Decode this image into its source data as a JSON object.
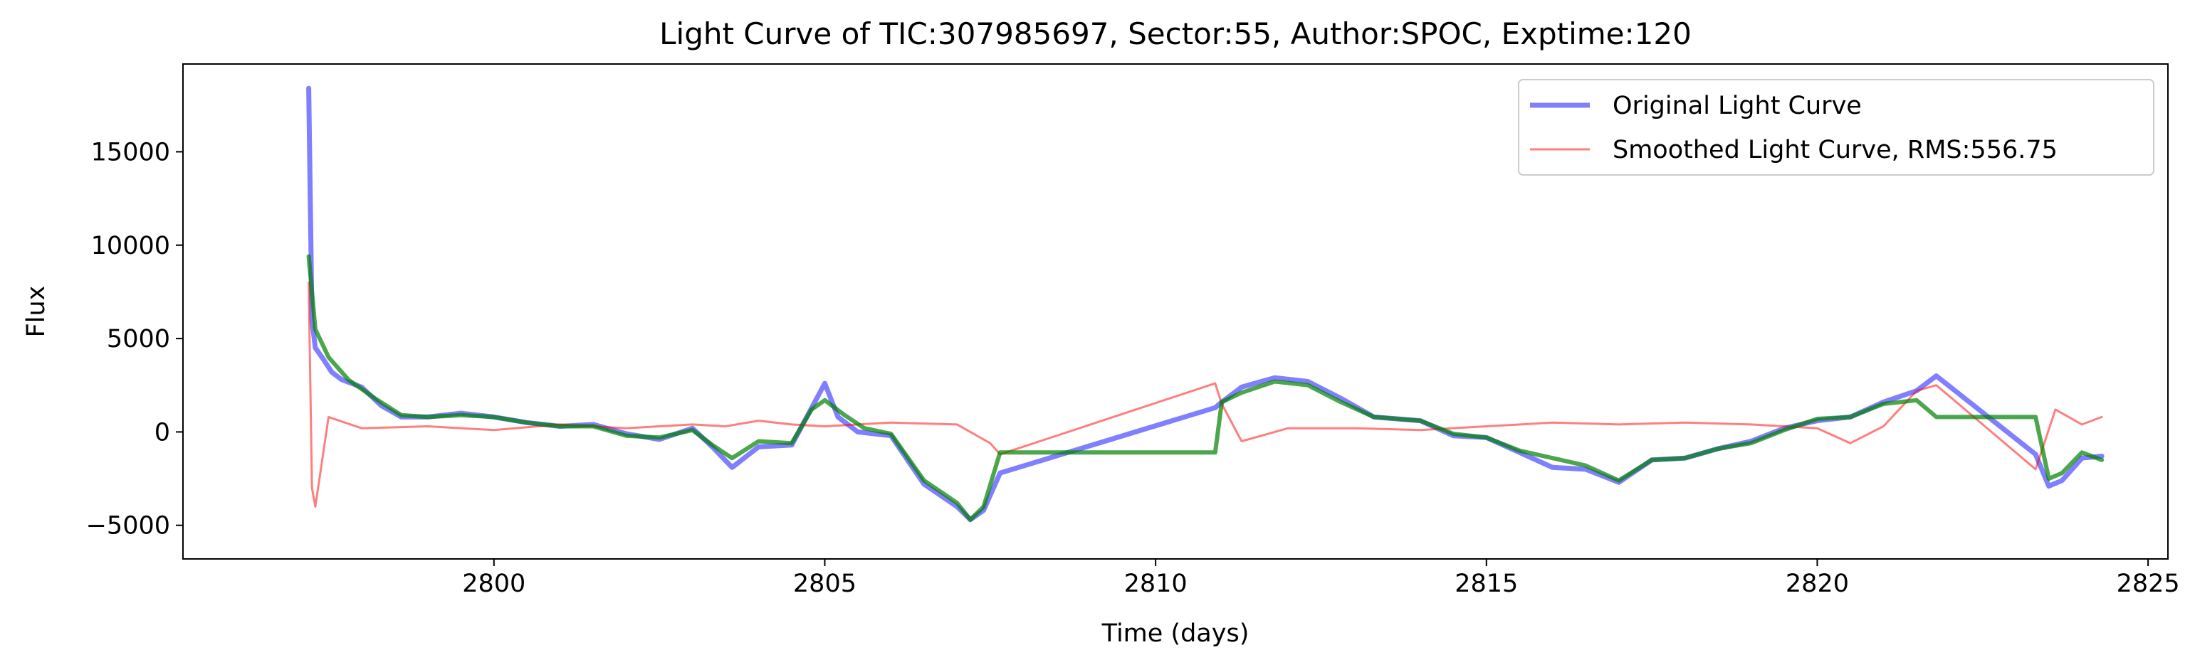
{
  "chart_data": {
    "type": "line",
    "title": "Light Curve of TIC:307985697, Sector:55, Author:SPOC, Exptime:120",
    "xlabel": "Time (days)",
    "ylabel": "Flux",
    "xlim": [
      2795.3,
      2825.3
    ],
    "ylim": [
      -6800,
      19700
    ],
    "xticks": [
      2800,
      2805,
      2810,
      2815,
      2820,
      2825
    ],
    "yticks": [
      -5000,
      0,
      5000,
      10000,
      15000
    ],
    "ytick_labels": [
      "−5000",
      "0",
      "5000",
      "10000",
      "15000"
    ],
    "grid": false,
    "legend_position": "top-right",
    "series": [
      {
        "name": "Original Light Curve",
        "color": "#0000ff",
        "opacity": 0.5,
        "x": [
          2797.2,
          2797.25,
          2797.3,
          2797.4,
          2797.55,
          2797.7,
          2798.0,
          2798.3,
          2798.6,
          2799.0,
          2799.5,
          2800.0,
          2800.5,
          2801.0,
          2801.5,
          2802.0,
          2802.5,
          2803.0,
          2803.3,
          2803.6,
          2804.0,
          2804.5,
          2805.0,
          2805.2,
          2805.5,
          2806.0,
          2806.5,
          2807.0,
          2807.2,
          2807.4,
          2807.65,
          2810.9,
          2811.0,
          2811.3,
          2811.8,
          2812.3,
          2812.8,
          2813.3,
          2814.0,
          2814.5,
          2815.0,
          2815.5,
          2816.0,
          2816.5,
          2817.0,
          2817.5,
          2818.0,
          2818.5,
          2819.0,
          2819.5,
          2820.0,
          2820.5,
          2821.0,
          2821.5,
          2821.8,
          2823.3,
          2823.5,
          2823.7,
          2824.0,
          2824.3
        ],
        "y": [
          18400,
          6000,
          4500,
          4000,
          3200,
          2800,
          2400,
          1400,
          800,
          800,
          1000,
          800,
          500,
          300,
          400,
          -100,
          -400,
          200,
          -800,
          -1900,
          -800,
          -700,
          2600,
          800,
          0,
          -200,
          -2800,
          -4000,
          -4700,
          -4200,
          -2200,
          1300,
          1600,
          2400,
          2900,
          2700,
          1800,
          800,
          600,
          -200,
          -300,
          -1100,
          -1900,
          -2000,
          -2700,
          -1500,
          -1400,
          -900,
          -500,
          200,
          600,
          800,
          1600,
          2200,
          3000,
          -1200,
          -2900,
          -2600,
          -1400,
          -1300
        ]
      },
      {
        "name": "Smoothed Light Curve, RMS:556.75",
        "color": "#ff0000",
        "opacity": 0.5,
        "x": [
          2797.2,
          2797.25,
          2797.3,
          2797.5,
          2798.0,
          2799.0,
          2800.0,
          2801.0,
          2802.0,
          2803.0,
          2803.5,
          2804.0,
          2804.5,
          2805.0,
          2806.0,
          2807.0,
          2807.5,
          2807.65,
          2810.9,
          2811.0,
          2811.3,
          2812.0,
          2813.0,
          2814.0,
          2815.0,
          2816.0,
          2817.0,
          2818.0,
          2819.0,
          2820.0,
          2820.5,
          2821.0,
          2821.5,
          2821.8,
          2823.3,
          2823.6,
          2824.0,
          2824.3
        ],
        "y": [
          8000,
          -3000,
          -4000,
          800,
          200,
          300,
          100,
          400,
          200,
          400,
          300,
          600,
          400,
          300,
          500,
          400,
          -600,
          -1200,
          2600,
          1500,
          -500,
          200,
          200,
          100,
          300,
          500,
          400,
          500,
          400,
          200,
          -600,
          300,
          2200,
          2500,
          -2000,
          1200,
          400,
          800
        ]
      },
      {
        "name": "",
        "color": "#008000",
        "opacity": 0.7,
        "x": [
          2797.2,
          2797.3,
          2797.5,
          2797.8,
          2798.2,
          2798.6,
          2799.0,
          2799.5,
          2800.0,
          2800.5,
          2801.0,
          2801.5,
          2802.0,
          2802.5,
          2803.0,
          2803.3,
          2803.6,
          2804.0,
          2804.5,
          2804.8,
          2805.0,
          2805.3,
          2805.6,
          2806.0,
          2806.5,
          2807.0,
          2807.2,
          2807.4,
          2807.65,
          2810.9,
          2811.0,
          2811.3,
          2811.8,
          2812.3,
          2812.8,
          2813.3,
          2814.0,
          2814.5,
          2815.0,
          2815.5,
          2816.0,
          2816.5,
          2817.0,
          2817.5,
          2818.0,
          2818.5,
          2819.0,
          2819.5,
          2820.0,
          2820.5,
          2821.0,
          2821.5,
          2821.8,
          2823.3,
          2823.5,
          2823.7,
          2824.0,
          2824.3
        ],
        "y": [
          9400,
          5500,
          4000,
          2800,
          1800,
          900,
          800,
          900,
          800,
          500,
          300,
          300,
          -200,
          -300,
          100,
          -700,
          -1400,
          -500,
          -600,
          1200,
          1700,
          900,
          200,
          -100,
          -2600,
          -3800,
          -4700,
          -4000,
          -1100,
          -1100,
          1600,
          2100,
          2700,
          2500,
          1600,
          800,
          600,
          -100,
          -300,
          -1000,
          -1400,
          -1800,
          -2600,
          -1500,
          -1400,
          -900,
          -600,
          100,
          700,
          800,
          1500,
          1700,
          800,
          800,
          -2500,
          -2200,
          -1100,
          -1500
        ]
      }
    ]
  }
}
